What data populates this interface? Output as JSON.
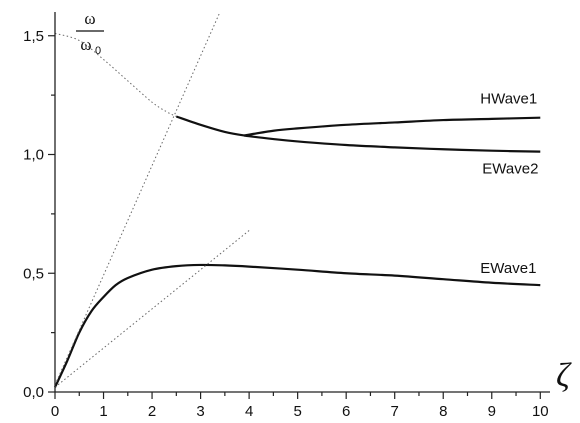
{
  "chart_data": {
    "type": "line",
    "title": "",
    "xlabel": "ζ",
    "ylabel": {
      "numerator": "ω",
      "denominator": "ω",
      "denominator_subscript": "0"
    },
    "xlim": [
      0,
      10.2
    ],
    "ylim": [
      0,
      1.6
    ],
    "x_ticks": [
      {
        "value": 0,
        "label": "0"
      },
      {
        "value": 1,
        "label": "1"
      },
      {
        "value": 2,
        "label": "2"
      },
      {
        "value": 3,
        "label": "3"
      },
      {
        "value": 4,
        "label": "4"
      },
      {
        "value": 5,
        "label": "5"
      },
      {
        "value": 6,
        "label": "6"
      },
      {
        "value": 7,
        "label": "7"
      },
      {
        "value": 8,
        "label": "8"
      },
      {
        "value": 9,
        "label": "9"
      },
      {
        "value": 10,
        "label": "10"
      }
    ],
    "y_ticks": [
      {
        "value": 0.0,
        "label": "0,0"
      },
      {
        "value": 0.5,
        "label": "0,5"
      },
      {
        "value": 1.0,
        "label": "1,0"
      },
      {
        "value": 1.5,
        "label": "1,5"
      }
    ],
    "grid": false,
    "series": [
      {
        "name": "HWave1",
        "style": "solid",
        "x": [
          3.9,
          4.5,
          5,
          6,
          7,
          8,
          9,
          10
        ],
        "y": [
          1.08,
          1.1,
          1.11,
          1.125,
          1.135,
          1.145,
          1.15,
          1.155
        ]
      },
      {
        "name": "EWave2",
        "style": "solid",
        "x": [
          2.5,
          3,
          3.5,
          3.9,
          4.5,
          5,
          6,
          7,
          8,
          9,
          10
        ],
        "y": [
          1.16,
          1.125,
          1.095,
          1.08,
          1.065,
          1.055,
          1.04,
          1.03,
          1.022,
          1.016,
          1.012
        ]
      },
      {
        "name": "EWave1",
        "style": "solid",
        "x": [
          0,
          0.25,
          0.5,
          0.75,
          1,
          1.25,
          1.5,
          2,
          2.5,
          3,
          3.5,
          4,
          5,
          6,
          7,
          8,
          9,
          10
        ],
        "y": [
          0.02,
          0.13,
          0.25,
          0.34,
          0.4,
          0.45,
          0.48,
          0.515,
          0.53,
          0.535,
          0.533,
          0.528,
          0.515,
          0.5,
          0.49,
          0.475,
          0.46,
          0.45
        ]
      },
      {
        "style": "dotted",
        "x": [
          0,
          0.5,
          1,
          1.5,
          2,
          2.3,
          2.5
        ],
        "y": [
          1.51,
          1.48,
          1.4,
          1.31,
          1.22,
          1.18,
          1.16
        ]
      },
      {
        "style": "dotted",
        "x": [
          0,
          3.4
        ],
        "y": [
          0.03,
          1.6
        ]
      },
      {
        "style": "dotted",
        "x": [
          0,
          4.0
        ],
        "y": [
          0.02,
          0.68
        ]
      }
    ]
  }
}
